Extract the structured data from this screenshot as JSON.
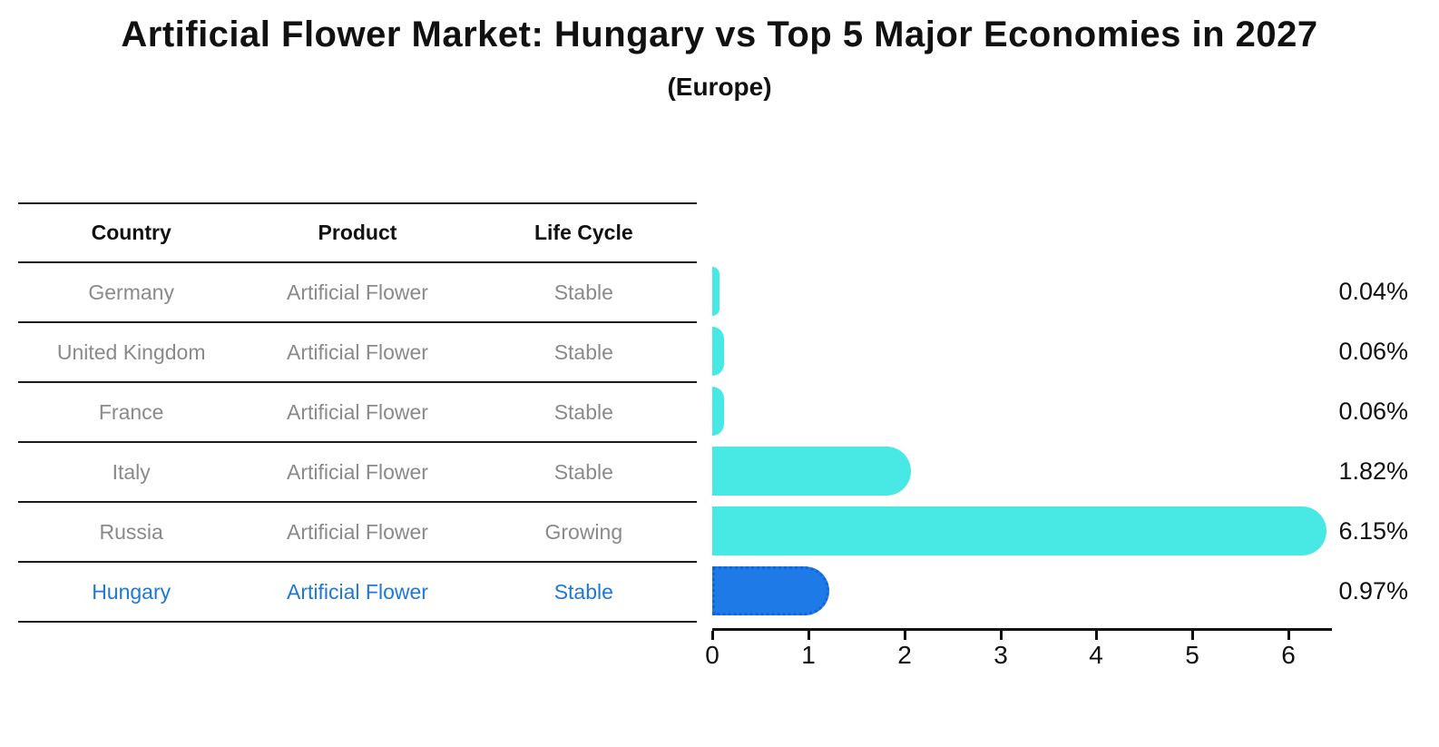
{
  "title": "Artificial Flower Market: Hungary vs Top 5 Major Economies in 2027",
  "subtitle": "(Europe)",
  "table": {
    "headers": [
      "Country",
      "Product",
      "Life Cycle"
    ],
    "rows": [
      {
        "country": "Germany",
        "product": "Artificial Flower",
        "life_cycle": "Stable"
      },
      {
        "country": "United Kingdom",
        "product": "Artificial Flower",
        "life_cycle": "Stable"
      },
      {
        "country": "France",
        "product": "Artificial Flower",
        "life_cycle": "Stable"
      },
      {
        "country": "Italy",
        "product": "Artificial Flower",
        "life_cycle": "Stable"
      },
      {
        "country": "Russia",
        "product": "Artificial Flower",
        "life_cycle": "Growing"
      },
      {
        "country": "Hungary",
        "product": "Artificial Flower",
        "life_cycle": "Stable"
      }
    ],
    "highlighted_row": "Hungary"
  },
  "chart_data": {
    "type": "bar",
    "orientation": "horizontal",
    "categories": [
      "Germany",
      "United Kingdom",
      "France",
      "Italy",
      "Russia",
      "Hungary"
    ],
    "values": [
      0.04,
      0.06,
      0.06,
      1.82,
      6.15,
      0.97
    ],
    "value_labels": [
      "0.04%",
      "0.06%",
      "0.06%",
      "1.82%",
      "6.15%",
      "0.97%"
    ],
    "x_ticks": [
      0,
      1,
      2,
      3,
      4,
      5,
      6
    ],
    "x_tick_labels": [
      "0",
      "1",
      "2",
      "3",
      "4",
      "5",
      "6"
    ],
    "xlim": [
      0,
      6.45
    ],
    "grid": "off",
    "legend": "none",
    "bar_color": "#48e8e4",
    "highlight_bar_color": "#1e7ae6",
    "highlight_border_color": "#1064dc",
    "highlight_index": 5
  },
  "colors": {
    "background": "#ffffff",
    "title_text": "#111111",
    "table_text": "#8a8a8a",
    "table_line": "#1a1a1a",
    "highlight_text": "#1f78d4",
    "bar_cyan": "#48e8e4",
    "bar_blue": "#1e7ae6",
    "axis": "#111111"
  }
}
